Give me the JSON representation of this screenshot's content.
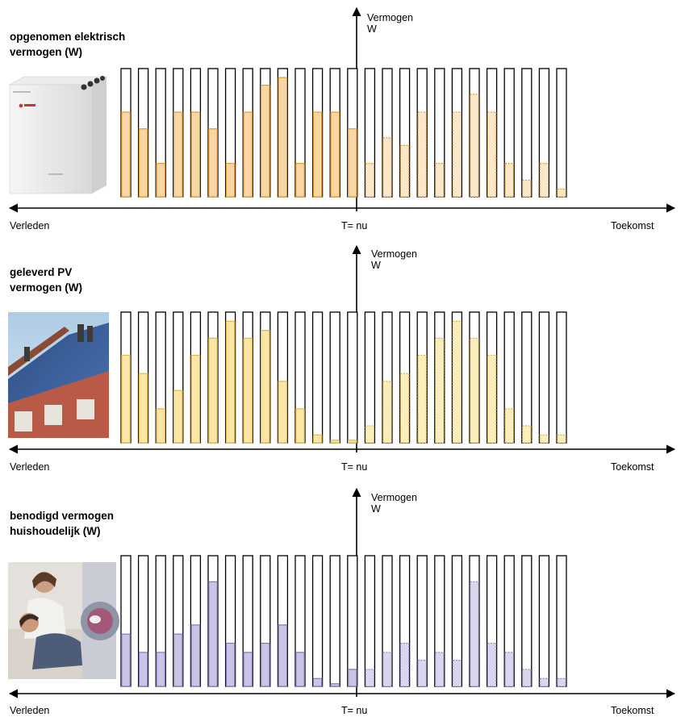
{
  "axes": {
    "y_label": "Vermogen\nW",
    "left_label": "Verleden",
    "now_label": "T= nu",
    "right_label": "Toekomst"
  },
  "panels": [
    {
      "id": "electric",
      "title": "opgenomen elektrisch\nvermogen (W)",
      "picture": "heat-pump-unit",
      "colors": {
        "fill_past": "#f8d6a5",
        "edge_past": "#e39d2b",
        "fill_future": "#fbe7c9",
        "edge_future": "#d99a3a"
      },
      "past": [
        0.66,
        0.53,
        0.26,
        0.66,
        0.66,
        0.53,
        0.26,
        0.66,
        0.87,
        0.93,
        0.26,
        0.66,
        0.66,
        0.53
      ],
      "future": [
        0.26,
        0.46,
        0.4,
        0.66,
        0.26,
        0.66,
        0.8,
        0.66,
        0.26,
        0.13,
        0.26,
        0.06
      ]
    },
    {
      "id": "pv",
      "title": "geleverd PV\nvermogen (W)",
      "picture": "solar-roof",
      "colors": {
        "fill_past": "#fbe6a6",
        "edge_past": "#e3b74a",
        "fill_future": "#fbeebd",
        "edge_future": "#dcb24a"
      },
      "past": [
        0.67,
        0.53,
        0.26,
        0.4,
        0.67,
        0.8,
        0.93,
        0.8,
        0.86,
        0.47,
        0.26,
        0.06,
        0.02,
        0.02
      ],
      "future": [
        0.13,
        0.47,
        0.53,
        0.67,
        0.8,
        0.93,
        0.8,
        0.67,
        0.26,
        0.13,
        0.06,
        0.06
      ]
    },
    {
      "id": "household",
      "title": "benodigd  vermogen\nhuishoudelijk (W)",
      "picture": "family-laundry",
      "colors": {
        "fill_past": "#c9c5e6",
        "edge_past": "#7e78b8",
        "fill_future": "#d9d6ef",
        "edge_future": "#8e89c2"
      },
      "past": [
        0.4,
        0.26,
        0.26,
        0.4,
        0.47,
        0.8,
        0.33,
        0.26,
        0.33,
        0.47,
        0.26,
        0.06,
        0.02,
        0.13
      ],
      "future": [
        0.13,
        0.26,
        0.33,
        0.2,
        0.26,
        0.2,
        0.8,
        0.33,
        0.26,
        0.13,
        0.06,
        0.06
      ]
    }
  ]
}
